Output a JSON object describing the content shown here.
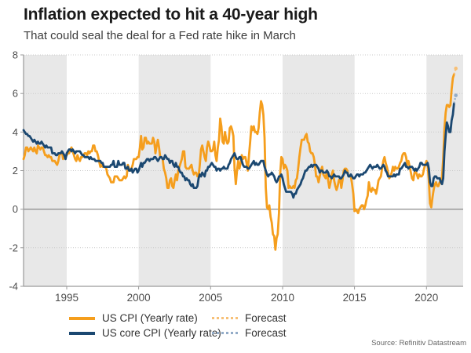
{
  "header": {
    "title": "Inflation expected to hit a 40-year high",
    "subtitle": "That could seal the deal for a Fed rate hike in March"
  },
  "legend": {
    "cpi_label": "US CPI (Yearly rate)",
    "core_label": "US core CPI (Yearly rate)",
    "forecast_cpi_label": "Forecast",
    "forecast_core_label": "Forecast"
  },
  "source_text": "Source: Refinitiv Datastream",
  "chart_data": {
    "type": "line",
    "title": "Inflation expected to hit a 40-year high",
    "subtitle": "That could seal the deal for a Fed rate hike in March",
    "x_axis": {
      "ticks": [
        1995,
        2000,
        2005,
        2010,
        2015,
        2020
      ],
      "range": [
        1992,
        2022.55
      ],
      "grid": false
    },
    "y_axis": {
      "ticks": [
        -4,
        -2,
        0,
        2,
        4,
        6,
        8
      ],
      "range": [
        -4,
        8
      ],
      "grid": "dotted"
    },
    "shaded_bands": [
      [
        1992,
        1995
      ],
      [
        2000,
        2005
      ],
      [
        2010,
        2015
      ],
      [
        2020,
        2022.55
      ]
    ],
    "colors": {
      "band": "#E8E8E8",
      "grid": "#C9C9C9",
      "zero_line": "#7F7F7F",
      "axis": "#9A9A9A",
      "tick_text": "#4D4D4D"
    },
    "series": [
      {
        "name": "US CPI (Yearly rate)",
        "color": "#F59E1D",
        "start": "1992-01",
        "freq": "monthly",
        "values": [
          2.6,
          2.8,
          3.2,
          3.2,
          3.0,
          3.1,
          3.2,
          3.1,
          3.0,
          3.2,
          3.0,
          2.9,
          3.3,
          3.2,
          3.1,
          3.2,
          3.2,
          3.0,
          2.8,
          2.8,
          2.7,
          2.8,
          2.7,
          2.7,
          2.5,
          2.5,
          2.5,
          2.4,
          2.3,
          2.5,
          2.8,
          2.9,
          3.0,
          2.6,
          2.7,
          2.7,
          2.8,
          2.9,
          2.9,
          3.1,
          3.2,
          3.0,
          2.8,
          2.6,
          2.5,
          2.8,
          2.6,
          2.5,
          2.7,
          2.7,
          2.8,
          2.9,
          2.9,
          2.8,
          3.0,
          2.9,
          3.0,
          3.0,
          3.3,
          3.3,
          3.0,
          3.0,
          2.8,
          2.5,
          2.2,
          2.3,
          2.2,
          2.2,
          2.2,
          2.1,
          1.8,
          1.7,
          1.6,
          1.4,
          1.4,
          1.4,
          1.7,
          1.7,
          1.7,
          1.6,
          1.5,
          1.5,
          1.5,
          1.6,
          1.7,
          1.6,
          1.7,
          2.3,
          2.1,
          2.0,
          2.1,
          2.3,
          2.6,
          2.6,
          2.6,
          2.7,
          2.7,
          3.2,
          3.8,
          3.1,
          3.2,
          3.7,
          3.7,
          3.4,
          3.5,
          3.4,
          3.4,
          3.4,
          3.7,
          3.5,
          2.9,
          3.3,
          3.6,
          3.2,
          2.7,
          2.7,
          2.6,
          2.1,
          1.9,
          1.6,
          1.1,
          1.1,
          1.5,
          1.6,
          1.2,
          1.1,
          1.5,
          1.8,
          1.5,
          2.0,
          2.2,
          2.4,
          2.6,
          3.0,
          3.0,
          2.2,
          2.1,
          2.1,
          2.1,
          2.2,
          2.3,
          2.0,
          1.8,
          1.9,
          1.9,
          1.7,
          1.7,
          2.3,
          3.1,
          3.3,
          3.0,
          2.7,
          2.5,
          3.2,
          3.5,
          3.3,
          3.0,
          3.0,
          3.1,
          3.5,
          2.8,
          2.5,
          3.2,
          3.6,
          4.7,
          4.3,
          3.5,
          3.4,
          4.0,
          3.6,
          3.4,
          3.5,
          4.2,
          4.3,
          4.1,
          3.8,
          2.1,
          1.3,
          2.0,
          2.5,
          2.1,
          2.4,
          2.8,
          2.6,
          2.7,
          2.7,
          2.4,
          2.0,
          2.8,
          3.5,
          4.3,
          4.1,
          4.3,
          4.0,
          4.0,
          3.9,
          4.2,
          5.0,
          5.6,
          5.4,
          4.9,
          3.7,
          1.1,
          0.1,
          0.0,
          0.2,
          -0.4,
          -0.7,
          -1.3,
          -1.4,
          -2.1,
          -1.5,
          -1.3,
          -0.2,
          1.8,
          2.7,
          2.6,
          2.1,
          2.3,
          2.2,
          2.0,
          1.1,
          1.2,
          1.1,
          1.1,
          1.2,
          1.1,
          1.5,
          1.6,
          2.1,
          2.7,
          3.2,
          3.6,
          3.6,
          3.6,
          3.8,
          3.9,
          3.5,
          3.4,
          3.0,
          2.9,
          2.9,
          2.7,
          2.3,
          1.7,
          1.7,
          1.4,
          1.7,
          2.0,
          2.2,
          1.8,
          1.7,
          1.6,
          2.0,
          1.5,
          1.1,
          1.4,
          1.8,
          2.0,
          1.5,
          1.2,
          1.0,
          1.2,
          1.5,
          1.6,
          1.1,
          1.5,
          2.0,
          2.1,
          2.1,
          2.0,
          1.7,
          1.7,
          1.7,
          1.3,
          0.8,
          -0.1,
          0.0,
          -0.1,
          -0.2,
          0.0,
          0.1,
          0.2,
          0.2,
          0.0,
          0.2,
          0.5,
          0.7,
          1.4,
          1.0,
          0.9,
          1.1,
          1.0,
          1.0,
          0.8,
          1.1,
          1.5,
          1.6,
          1.7,
          2.1,
          2.5,
          2.7,
          2.4,
          2.2,
          1.9,
          1.6,
          1.7,
          1.9,
          2.2,
          2.0,
          2.2,
          2.1,
          2.1,
          2.2,
          2.4,
          2.5,
          2.8,
          2.9,
          2.9,
          2.7,
          2.3,
          2.5,
          2.2,
          1.9,
          1.6,
          1.5,
          1.9,
          2.0,
          1.8,
          1.6,
          1.8,
          1.7,
          1.7,
          1.8,
          2.1,
          2.3,
          2.5,
          2.3,
          1.5,
          0.3,
          0.1,
          0.6,
          1.0,
          1.3,
          1.4,
          1.2,
          1.2,
          1.4,
          1.4,
          1.7,
          2.6,
          4.2,
          5.0,
          5.4,
          5.4,
          5.3,
          5.4,
          6.2,
          6.8,
          7.0
        ]
      },
      {
        "name": "US core CPI (Yearly rate)",
        "color": "#1B4871",
        "start": "1992-01",
        "freq": "monthly",
        "values": [
          4.1,
          4.0,
          3.9,
          3.9,
          3.8,
          3.8,
          3.7,
          3.6,
          3.5,
          3.6,
          3.5,
          3.4,
          3.5,
          3.4,
          3.4,
          3.5,
          3.4,
          3.3,
          3.2,
          3.3,
          3.2,
          3.2,
          3.2,
          3.2,
          2.9,
          2.9,
          2.9,
          2.8,
          2.8,
          2.9,
          2.9,
          2.9,
          3.0,
          2.9,
          2.8,
          2.6,
          2.9,
          3.0,
          3.1,
          3.1,
          3.0,
          3.1,
          3.0,
          2.9,
          3.0,
          3.0,
          3.0,
          3.0,
          2.9,
          2.8,
          2.8,
          2.7,
          2.7,
          2.7,
          2.7,
          2.6,
          2.7,
          2.6,
          2.6,
          2.6,
          2.5,
          2.5,
          2.5,
          2.5,
          2.5,
          2.4,
          2.4,
          2.2,
          2.2,
          2.2,
          2.2,
          2.2,
          2.2,
          2.3,
          2.3,
          2.5,
          2.2,
          2.2,
          2.2,
          2.5,
          2.3,
          2.3,
          2.3,
          2.4,
          2.4,
          2.1,
          2.1,
          2.2,
          2.0,
          2.0,
          2.1,
          1.9,
          2.0,
          2.1,
          2.1,
          1.9,
          2.0,
          2.2,
          2.4,
          2.2,
          2.4,
          2.4,
          2.5,
          2.6,
          2.6,
          2.5,
          2.6,
          2.6,
          2.6,
          2.7,
          2.7,
          2.6,
          2.5,
          2.6,
          2.7,
          2.7,
          2.6,
          2.6,
          2.8,
          2.7,
          2.6,
          2.6,
          2.4,
          2.5,
          2.5,
          2.3,
          2.2,
          2.4,
          2.2,
          2.2,
          2.0,
          1.9,
          1.9,
          1.7,
          1.7,
          1.5,
          1.6,
          1.5,
          1.5,
          1.3,
          1.2,
          1.3,
          1.1,
          1.1,
          1.1,
          1.2,
          1.6,
          1.8,
          1.7,
          1.9,
          1.8,
          1.7,
          2.0,
          2.0,
          2.2,
          2.2,
          2.3,
          2.4,
          2.3,
          2.2,
          2.2,
          2.0,
          2.1,
          2.1,
          2.0,
          2.1,
          2.1,
          2.2,
          2.1,
          2.1,
          2.1,
          2.3,
          2.4,
          2.6,
          2.7,
          2.8,
          2.9,
          2.7,
          2.6,
          2.6,
          2.7,
          2.7,
          2.5,
          2.3,
          2.2,
          2.2,
          2.2,
          2.1,
          2.1,
          2.2,
          2.3,
          2.4,
          2.5,
          2.3,
          2.4,
          2.3,
          2.3,
          2.4,
          2.5,
          2.5,
          2.5,
          2.2,
          2.0,
          1.8,
          1.7,
          1.8,
          1.8,
          1.9,
          1.8,
          1.7,
          1.5,
          1.4,
          1.5,
          1.7,
          1.7,
          1.8,
          1.6,
          1.3,
          1.1,
          0.9,
          0.9,
          0.9,
          0.9,
          0.9,
          0.8,
          0.6,
          0.8,
          0.8,
          1.0,
          1.1,
          1.2,
          1.3,
          1.5,
          1.6,
          1.8,
          2.0,
          2.0,
          2.1,
          2.2,
          2.2,
          2.3,
          2.2,
          2.3,
          2.3,
          2.3,
          2.2,
          2.1,
          1.9,
          2.0,
          2.0,
          1.9,
          1.9,
          1.9,
          2.0,
          1.9,
          1.7,
          1.7,
          1.6,
          1.7,
          1.8,
          1.7,
          1.7,
          1.7,
          1.7,
          1.6,
          1.6,
          1.7,
          1.8,
          2.0,
          1.9,
          1.9,
          1.7,
          1.7,
          1.8,
          1.7,
          1.6,
          1.6,
          1.7,
          1.8,
          1.8,
          1.7,
          1.8,
          1.8,
          1.8,
          1.9,
          1.9,
          2.0,
          2.1,
          2.2,
          2.3,
          2.2,
          2.1,
          2.2,
          2.2,
          2.2,
          2.3,
          2.2,
          2.1,
          2.1,
          2.2,
          2.3,
          2.2,
          2.0,
          1.9,
          1.7,
          1.7,
          1.7,
          1.7,
          1.7,
          1.8,
          1.7,
          1.8,
          1.8,
          1.8,
          2.1,
          2.1,
          2.2,
          2.3,
          2.4,
          2.2,
          2.2,
          2.1,
          2.2,
          2.2,
          2.2,
          2.1,
          2.0,
          2.1,
          2.0,
          2.1,
          2.2,
          2.4,
          2.4,
          2.3,
          2.3,
          2.3,
          2.3,
          2.4,
          2.1,
          1.4,
          1.2,
          1.2,
          1.6,
          1.7,
          1.7,
          1.6,
          1.6,
          1.6,
          1.4,
          1.3,
          1.6,
          3.0,
          3.8,
          4.5,
          4.3,
          4.0,
          4.0,
          4.6,
          4.9,
          5.5
        ]
      }
    ],
    "forecast_points": [
      {
        "series": "US CPI (Yearly rate)",
        "date": "2022-01",
        "value": 7.3,
        "color": "#F7C077"
      },
      {
        "series": "US core CPI (Yearly rate)",
        "date": "2022-01",
        "value": 5.9,
        "color": "#93ACC8"
      }
    ]
  }
}
